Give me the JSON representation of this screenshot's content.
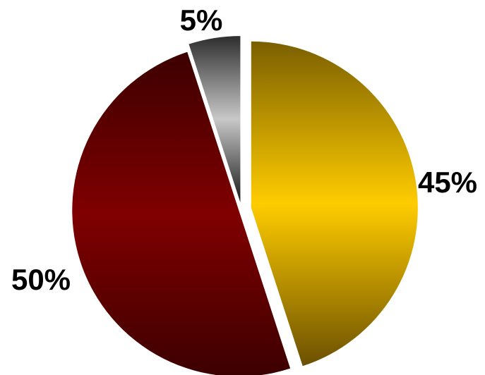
{
  "chart_data": {
    "type": "pie",
    "categories": [
      "",
      "",
      ""
    ],
    "values": [
      45,
      50,
      5
    ],
    "labels": [
      "45%",
      "50%",
      "5%"
    ],
    "colors": {
      "slice_0": [
        "#7a5f00",
        "#ffcc00",
        "#6b5000"
      ],
      "slice_1": [
        "#3c0000",
        "#800000",
        "#3c0000"
      ],
      "slice_2": [
        "#2e2e2e",
        "#c8c8c8",
        "#1a1a1a"
      ]
    },
    "legend": "none",
    "title": ""
  }
}
